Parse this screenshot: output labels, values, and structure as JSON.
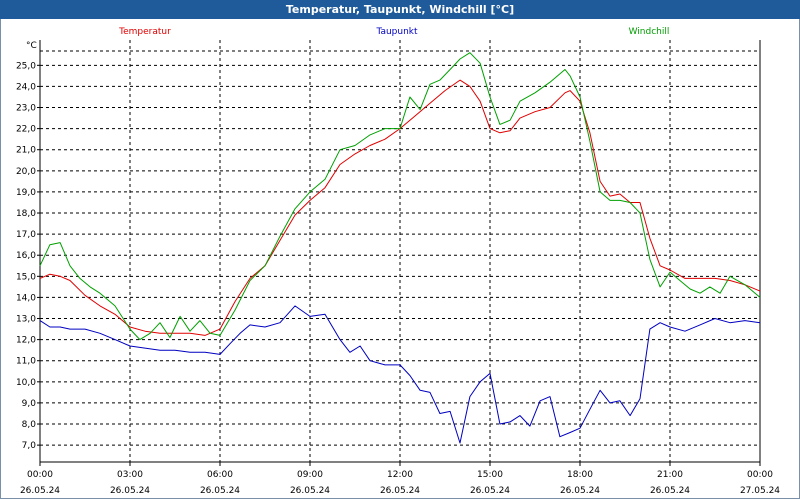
{
  "window": {
    "title": "Temperatur, Taupunkt, Windchill [°C]"
  },
  "chart_data": {
    "type": "line",
    "title": "Temperatur, Taupunkt, Windchill [°C]",
    "ylabel": "°C",
    "ylim": [
      6.2,
      26.2
    ],
    "yticks": [
      "7,0",
      "8,0",
      "9,0",
      "10,0",
      "11,0",
      "12,0",
      "13,0",
      "14,0",
      "15,0",
      "16,0",
      "17,0",
      "18,0",
      "19,0",
      "20,0",
      "21,0",
      "22,0",
      "23,0",
      "24,0",
      "25,0"
    ],
    "xlim": [
      0,
      24
    ],
    "xticks": [
      {
        "time": "00:00",
        "date": "26.05.24"
      },
      {
        "time": "03:00",
        "date": "26.05.24"
      },
      {
        "time": "06:00",
        "date": "26.05.24"
      },
      {
        "time": "09:00",
        "date": "26.05.24"
      },
      {
        "time": "12:00",
        "date": "26.05.24"
      },
      {
        "time": "15:00",
        "date": "26.05.24"
      },
      {
        "time": "18:00",
        "date": "26.05.24"
      },
      {
        "time": "21:00",
        "date": "26.05.24"
      },
      {
        "time": "00:00",
        "date": "27.05.24"
      }
    ],
    "grid": true,
    "legend_position": "top",
    "series": [
      {
        "name": "Temperatur",
        "color": "#e00000",
        "x": [
          0,
          0.33,
          0.67,
          1,
          1.5,
          2,
          2.5,
          3,
          3.5,
          4,
          4.5,
          5,
          5.5,
          6,
          6.5,
          7,
          7.5,
          8,
          8.5,
          9,
          9.5,
          10,
          10.5,
          11,
          11.5,
          12,
          12.5,
          13,
          13.5,
          14,
          14.33,
          14.67,
          15,
          15.33,
          15.67,
          16,
          16.5,
          17,
          17.5,
          17.67,
          18,
          18.33,
          18.67,
          19,
          19.33,
          19.67,
          20,
          20.33,
          20.67,
          21,
          21.5,
          22,
          22.5,
          23,
          23.5,
          24
        ],
        "values": [
          14.9,
          15.1,
          15.0,
          14.8,
          14.1,
          13.6,
          13.2,
          12.6,
          12.4,
          12.3,
          12.3,
          12.3,
          12.2,
          12.5,
          13.8,
          14.9,
          15.5,
          16.7,
          17.9,
          18.6,
          19.2,
          20.3,
          20.8,
          21.2,
          21.5,
          22.0,
          22.6,
          23.2,
          23.8,
          24.3,
          24.0,
          23.3,
          22.0,
          21.8,
          21.9,
          22.5,
          22.8,
          23.0,
          23.7,
          23.8,
          23.3,
          21.8,
          19.5,
          18.8,
          18.9,
          18.5,
          18.5,
          16.8,
          15.5,
          15.3,
          14.9,
          14.9,
          14.9,
          14.8,
          14.6,
          14.3
        ]
      },
      {
        "name": "Taupunkt",
        "color": "#0000c0",
        "x": [
          0,
          0.33,
          0.67,
          1,
          1.5,
          2,
          2.5,
          3,
          3.5,
          4,
          4.5,
          5,
          5.5,
          6,
          6.33,
          6.67,
          7,
          7.5,
          8,
          8.5,
          9,
          9.5,
          10,
          10.33,
          10.67,
          11,
          11.5,
          12,
          12.33,
          12.67,
          13,
          13.33,
          13.67,
          14,
          14.33,
          14.67,
          15,
          15.33,
          15.67,
          16,
          16.33,
          16.67,
          17,
          17.33,
          17.67,
          18,
          18.33,
          18.67,
          19,
          19.33,
          19.67,
          20,
          20.33,
          20.67,
          21,
          21.5,
          22,
          22.5,
          23,
          23.5,
          24
        ],
        "values": [
          12.9,
          12.6,
          12.6,
          12.5,
          12.5,
          12.3,
          12.0,
          11.7,
          11.6,
          11.5,
          11.5,
          11.4,
          11.4,
          11.3,
          11.8,
          12.3,
          12.7,
          12.6,
          12.8,
          13.6,
          13.1,
          13.2,
          12.0,
          11.4,
          11.7,
          11.0,
          10.8,
          10.8,
          10.3,
          9.6,
          9.5,
          8.5,
          8.6,
          7.1,
          9.3,
          10.0,
          10.4,
          8.0,
          8.1,
          8.4,
          7.9,
          9.1,
          9.3,
          7.4,
          7.6,
          7.8,
          8.7,
          9.6,
          9.0,
          9.1,
          8.4,
          9.2,
          12.5,
          12.8,
          12.6,
          12.4,
          12.7,
          13.0,
          12.8,
          12.9,
          12.8
        ]
      },
      {
        "name": "Windchill",
        "color": "#00a000",
        "x": [
          0,
          0.33,
          0.67,
          1,
          1.33,
          1.67,
          2,
          2.5,
          3,
          3.33,
          3.67,
          4,
          4.33,
          4.67,
          5,
          5.33,
          5.67,
          6,
          6.5,
          7,
          7.5,
          8,
          8.5,
          9,
          9.5,
          10,
          10.5,
          11,
          11.5,
          12,
          12.33,
          12.67,
          13,
          13.33,
          13.67,
          14,
          14.33,
          14.67,
          15,
          15.33,
          15.67,
          16,
          16.5,
          17,
          17.5,
          17.67,
          18,
          18.33,
          18.67,
          19,
          19.33,
          19.67,
          20,
          20.33,
          20.67,
          21,
          21.33,
          21.67,
          22,
          22.33,
          22.67,
          23,
          23.5,
          24
        ],
        "values": [
          15.5,
          16.5,
          16.6,
          15.5,
          14.9,
          14.5,
          14.2,
          13.6,
          12.5,
          12.0,
          12.3,
          12.8,
          12.1,
          13.1,
          12.4,
          12.9,
          12.3,
          12.2,
          13.4,
          14.8,
          15.5,
          16.9,
          18.2,
          19.0,
          19.6,
          21.0,
          21.2,
          21.7,
          22.0,
          22.0,
          23.5,
          22.9,
          24.1,
          24.3,
          24.8,
          25.3,
          25.6,
          25.1,
          23.5,
          22.2,
          22.4,
          23.3,
          23.7,
          24.2,
          24.8,
          24.5,
          23.5,
          21.4,
          19.0,
          18.6,
          18.6,
          18.5,
          18.0,
          15.8,
          14.5,
          15.2,
          14.8,
          14.4,
          14.2,
          14.5,
          14.2,
          15.0,
          14.6,
          14.0
        ]
      }
    ]
  }
}
